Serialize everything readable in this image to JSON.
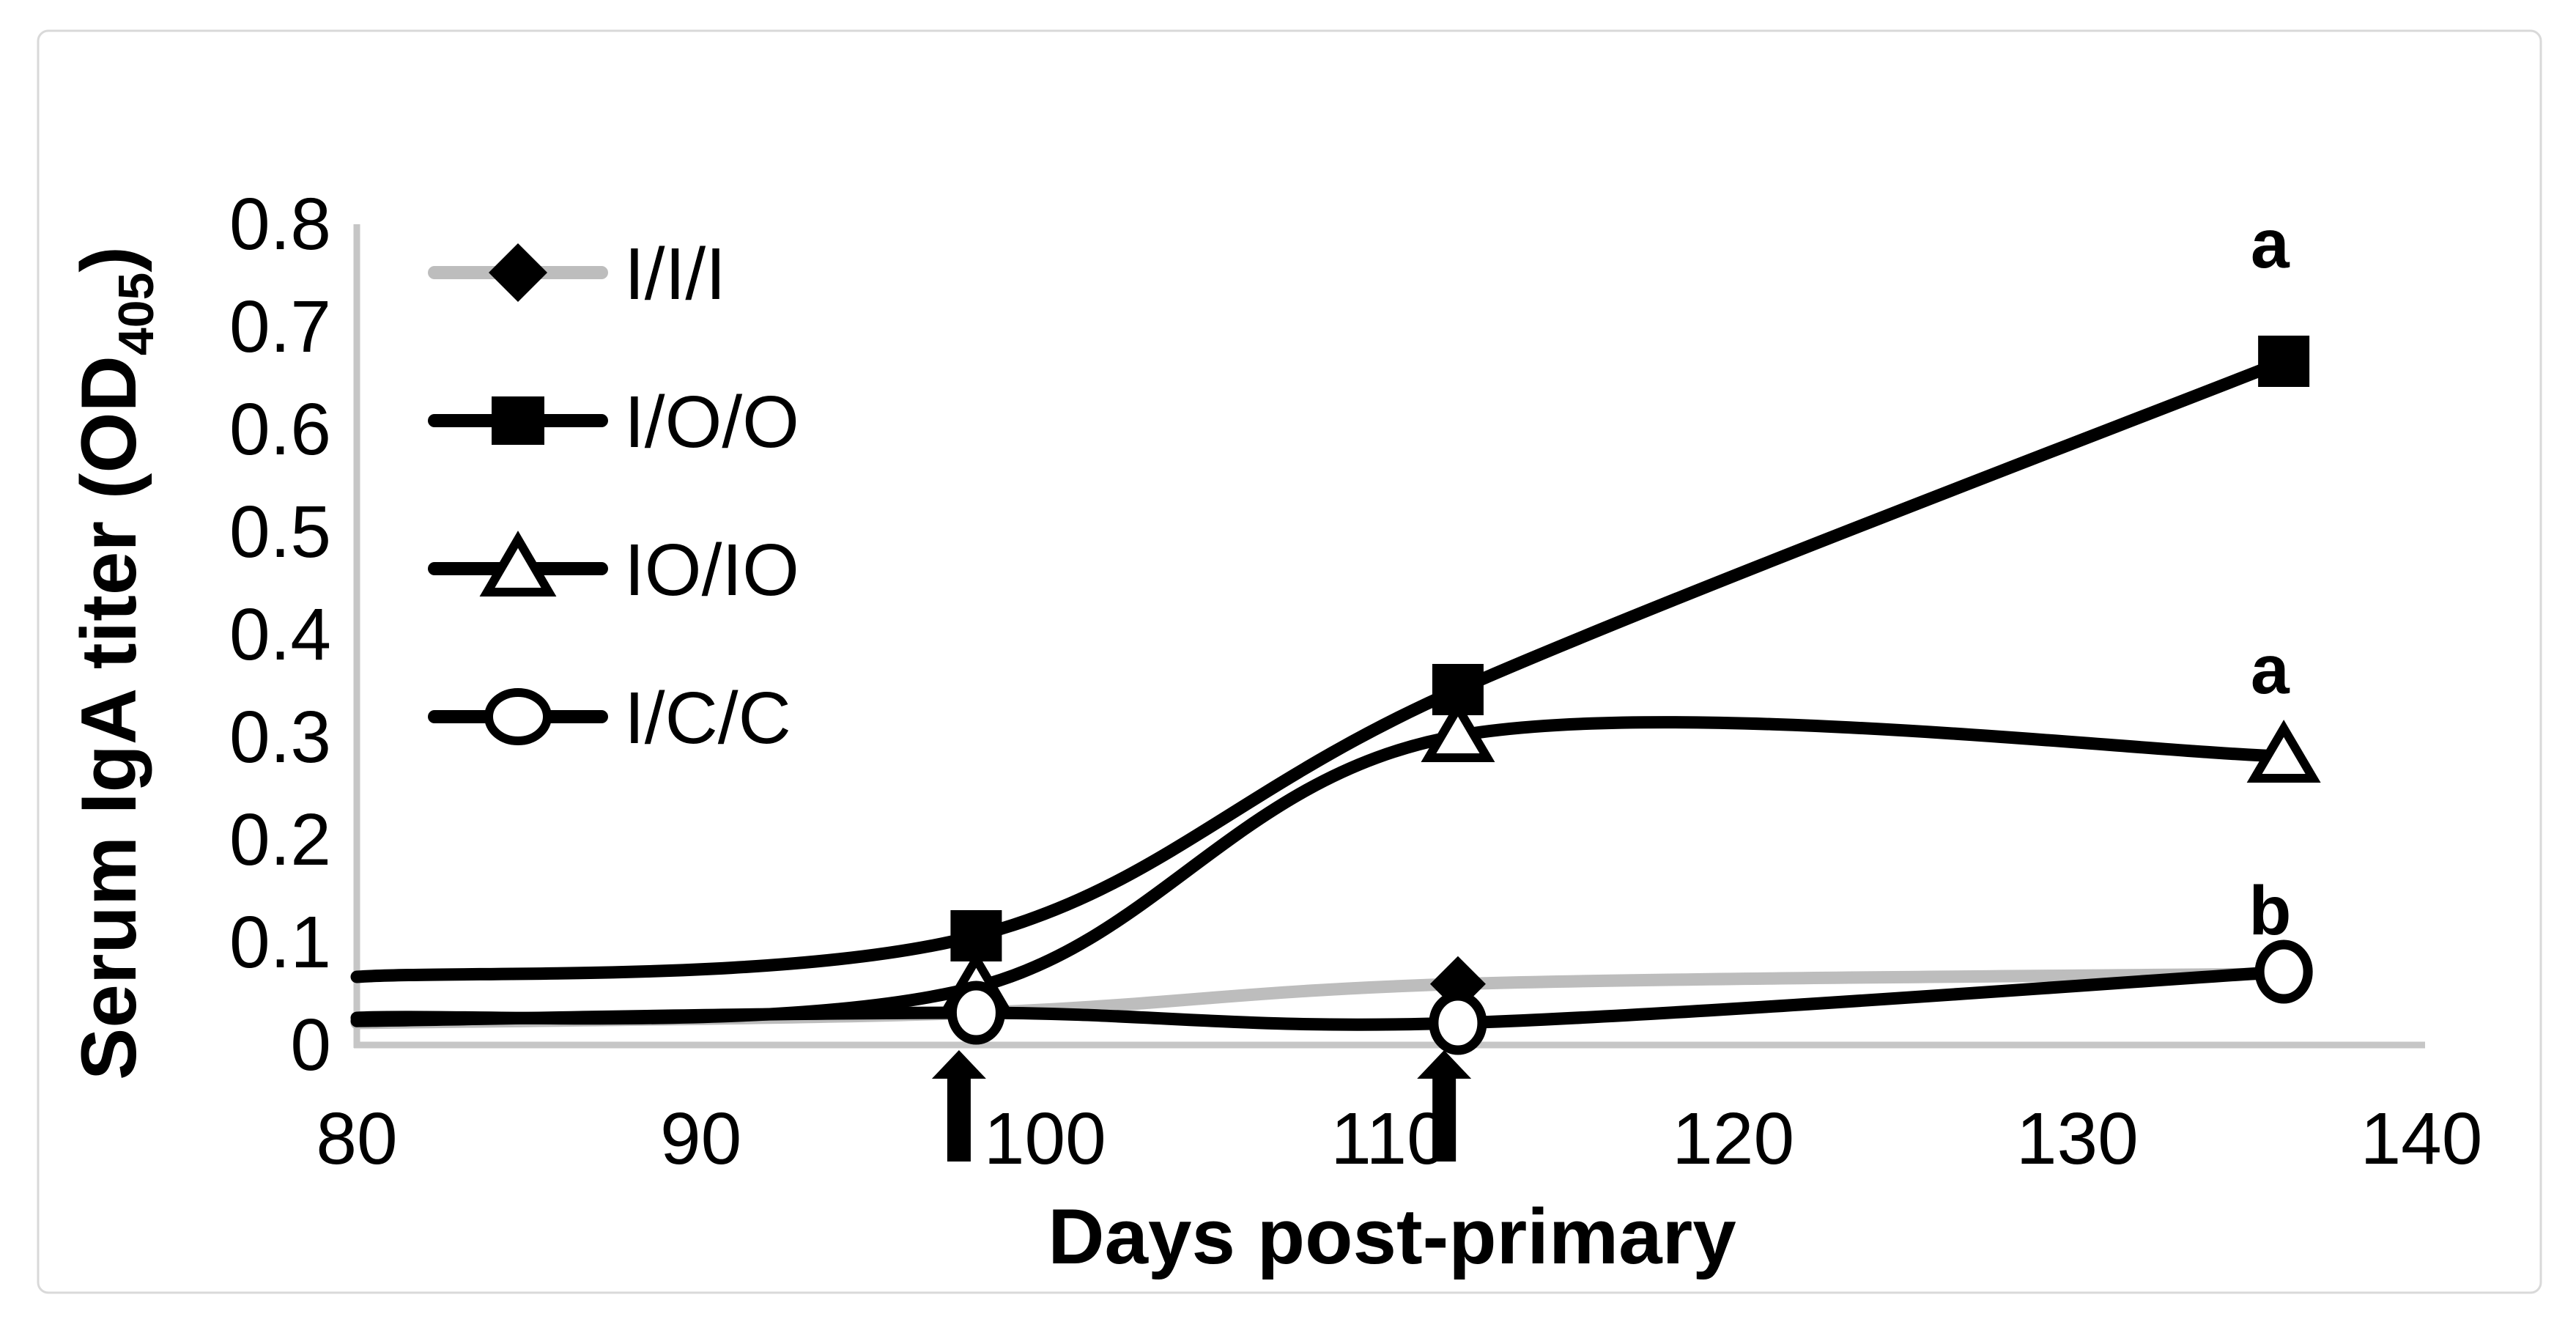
{
  "figure": {
    "background": "#ffffff",
    "border_color": "#d9d9d9",
    "axis_line_color": "#c6c6c6",
    "series_gray": "#bdbdbd",
    "series_black": "#000000"
  },
  "chart_data": {
    "type": "line",
    "title": "",
    "xlabel": "Days post-primary",
    "ylabel": {
      "main": "Serum IgA titer (OD",
      "sub": "405",
      "close": ")"
    },
    "xlim": [
      80,
      140
    ],
    "ylim": [
      0,
      0.8
    ],
    "grid": false,
    "legend_position": "top-left",
    "xticks": [
      "80",
      "90",
      "100",
      "110",
      "120",
      "130",
      "140"
    ],
    "xtick_values": [
      80,
      90,
      100,
      110,
      120,
      130,
      140
    ],
    "yticks": [
      "0",
      "0.1",
      "0.2",
      "0.3",
      "0.4",
      "0.5",
      "0.6",
      "0.7",
      "0.8"
    ],
    "ytick_values": [
      0,
      0.1,
      0.2,
      0.3,
      0.4,
      0.5,
      0.6,
      0.7,
      0.8
    ],
    "x": [
      80,
      98,
      112,
      136
    ],
    "series": [
      {
        "name": "I/I/I",
        "line_color": "#bdbdbd",
        "marker": "diamond-filled",
        "values": [
          0.02,
          0.03,
          0.058,
          0.068
        ],
        "markers_at_x": [
          112
        ]
      },
      {
        "name": "I/O/O",
        "line_color": "#000000",
        "marker": "square-filled",
        "values": [
          0.065,
          0.105,
          0.345,
          0.665
        ],
        "markers_at_x": [
          98,
          112,
          136
        ]
      },
      {
        "name": "IO/IO",
        "line_color": "#000000",
        "marker": "triangle-open",
        "values": [
          0.025,
          0.055,
          0.3,
          0.28
        ],
        "markers_at_x": [
          98,
          112,
          136
        ]
      },
      {
        "name": "I/C/C",
        "line_color": "#000000",
        "marker": "circle-open",
        "values": [
          0.022,
          0.03,
          0.02,
          0.07
        ],
        "markers_at_x": [
          98,
          112,
          136
        ]
      }
    ],
    "annotations": [
      {
        "text": "a",
        "x": 135.6,
        "y": 0.78
      },
      {
        "text": "a",
        "x": 135.6,
        "y": 0.365
      },
      {
        "text": "b",
        "x": 135.6,
        "y": 0.13
      }
    ],
    "arrows_x": [
      97.5,
      111.6
    ]
  }
}
